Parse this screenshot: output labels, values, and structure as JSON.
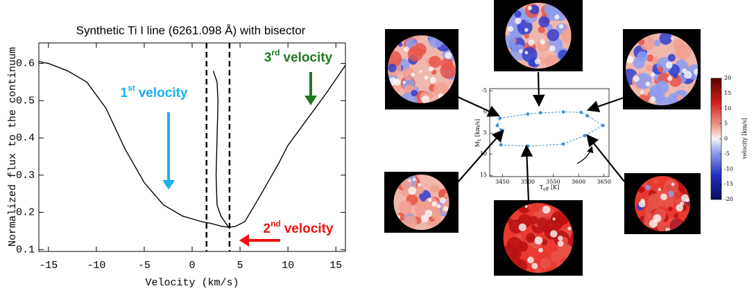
{
  "chart_data": [
    {
      "type": "line",
      "title": "Synthetic Ti I line (6261.098 Å) with bisector",
      "xlabel": "Velocity (km/s)",
      "ylabel": "Normalized flux to the continuum",
      "xlim": [
        -16,
        16
      ],
      "ylim": [
        0.095,
        0.655
      ],
      "xticks": [
        -15,
        -10,
        -5,
        0,
        5,
        10,
        15
      ],
      "yticks": [
        0.1,
        0.2,
        0.3,
        0.4,
        0.5,
        0.6
      ],
      "vlines": [
        1.5,
        3.9
      ],
      "series": [
        {
          "color": "#000000",
          "x": [
            -16,
            -15,
            -13,
            -11,
            -9,
            -7,
            -5,
            -3,
            -1,
            1,
            2,
            3,
            3.8,
            4.5,
            5.5,
            7,
            9,
            10,
            12,
            14,
            16
          ],
          "values": [
            0.605,
            0.6,
            0.58,
            0.55,
            0.48,
            0.37,
            0.28,
            0.22,
            0.19,
            0.175,
            0.17,
            0.163,
            0.16,
            0.162,
            0.175,
            0.24,
            0.33,
            0.38,
            0.45,
            0.52,
            0.595
          ]
        },
        {
          "color": "#000000",
          "x": [
            3.8,
            3.0,
            2.6,
            2.5,
            2.6,
            2.7,
            2.6,
            2.2
          ],
          "values": [
            0.16,
            0.19,
            0.22,
            0.3,
            0.4,
            0.5,
            0.55,
            0.58
          ]
        }
      ],
      "annotations": [
        {
          "number": "1",
          "suffix": "st",
          "label": "velocity",
          "color": "#1cb0ee"
        },
        {
          "number": "2",
          "suffix": "nd",
          "label": "velocity",
          "color": "#ee1111"
        },
        {
          "number": "3",
          "suffix": "rd",
          "label": "velocity",
          "color": "#1e7a1e"
        }
      ]
    },
    {
      "type": "line",
      "xlabel": {
        "main": "T",
        "sub": "eff",
        "unit": "[K]"
      },
      "ylabel": {
        "main": "M",
        "sub": "1",
        "unit": "[km/s]"
      },
      "xlim": [
        3425,
        3660
      ],
      "ylim": [
        -5.5,
        15.3
      ],
      "y_inverted": true,
      "xticks": [
        3450,
        3500,
        3550,
        3600,
        3650
      ],
      "yticks": [
        -5,
        0,
        5,
        10,
        15
      ],
      "series": [
        {
          "color": "#3a8fd8",
          "closed": true,
          "dashed": true,
          "x": [
            3445,
            3500,
            3525,
            3570,
            3605,
            3617,
            3648,
            3612,
            3570,
            3500,
            3447,
            3448,
            3440
          ],
          "values": [
            1.5,
            0.5,
            0.2,
            0,
            0.1,
            0.9,
            3.2,
            5.6,
            7.6,
            8.1,
            7.8,
            4.3,
            3.2
          ]
        }
      ],
      "colorbar": {
        "label": "velocity [km/s]",
        "lim": [
          -20,
          20
        ],
        "ticks": [
          -20,
          -15,
          -10,
          -5,
          0,
          5,
          10,
          15,
          20
        ]
      }
    }
  ]
}
